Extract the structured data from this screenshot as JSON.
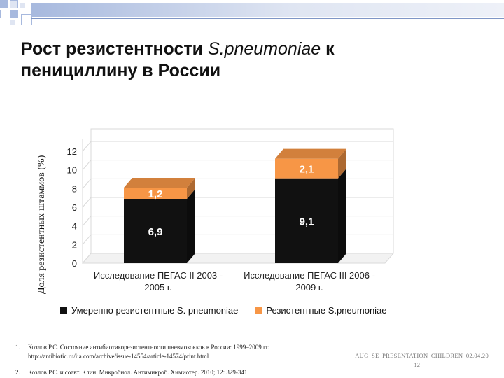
{
  "slide": {
    "title_part1": "Рост резистентности ",
    "title_species": "S.pneumoniae",
    "title_part2": " к пенициллину в России",
    "colors": {
      "deco_blue": "#a7b9de",
      "deco_light": "#dfe5f2",
      "rule": "#7f96c6"
    }
  },
  "chart_data": {
    "type": "bar",
    "stacked": true,
    "render": "3d",
    "ylabel": "Доля резистентных штаммов (%)",
    "ylim": [
      0,
      12
    ],
    "yticks": [
      0,
      2,
      4,
      6,
      8,
      10,
      12
    ],
    "categories": [
      "Исследование ПЕГАС II 2003 - 2005 г.",
      "Исследование ПЕГАС III 2006 - 2009 г."
    ],
    "category_lines": [
      [
        "Исследование ПЕГАС II 2003 -",
        "2005 г."
      ],
      [
        "Исследование ПЕГАС III 2006 -",
        "2009 г."
      ]
    ],
    "series": [
      {
        "name": "Умеренно резистентные S. pneumoniae",
        "values": [
          6.9,
          9.1
        ],
        "labels": [
          "6,9",
          "9,1"
        ],
        "color": "#111111"
      },
      {
        "name": "Резистентные S.pneumoniae",
        "values": [
          1.2,
          2.1
        ],
        "labels": [
          "1,2",
          "2,1"
        ],
        "color": "#f79646"
      }
    ],
    "legend": "bottom"
  },
  "references": [
    {
      "num": "1.",
      "text": "Козлов Р.С. Состояние антибиотикорезистентности пневмококков в России: 1999–2009 гг. http://antibiotic.ru/iia.com/archive/issue-14554/article-14574/print.html"
    },
    {
      "num": "2.",
      "text": "Козлов Р.С. и соавт. Клин. Микробиол. Антимикроб. Химиотер. 2010; 12: 329-341."
    }
  ],
  "footer": {
    "file_id": "AUG_SE_PRESENTATION_CHILDREN_02.04.20",
    "page": "12"
  }
}
